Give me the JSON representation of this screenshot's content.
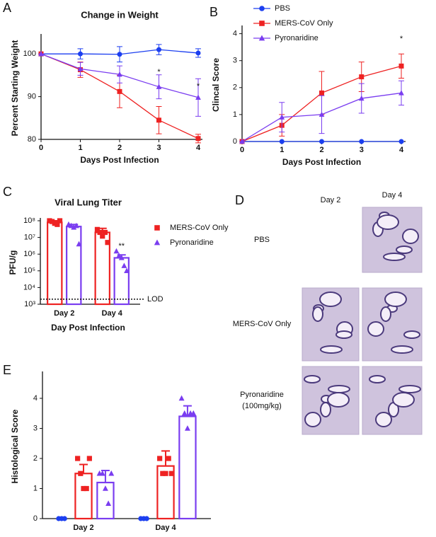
{
  "chart_data": [
    {
      "type": "line",
      "panel": "A",
      "title": "Change in Weight",
      "x_label": "Days Post Infection",
      "y_label": "Percent Starting Weight",
      "x": [
        0,
        1,
        2,
        3,
        4
      ],
      "xlim": [
        0,
        4
      ],
      "xticks": [
        0,
        1,
        2,
        3,
        4
      ],
      "ylim": [
        80,
        104
      ],
      "yticks": [
        80,
        90,
        100
      ],
      "series": [
        {
          "name": "PBS",
          "color": "#1c3ff0",
          "marker": "circle",
          "values": [
            100,
            100,
            99.9,
            101,
            100.2
          ],
          "errors": [
            0,
            1.2,
            1.8,
            1.2,
            1
          ]
        },
        {
          "name": "MERS-CoV Only",
          "color": "#ee2222",
          "marker": "square",
          "values": [
            100,
            96.3,
            91.2,
            84.5,
            80.2
          ],
          "errors": [
            0,
            1.8,
            3.8,
            3.2,
            1
          ]
        },
        {
          "name": "Pyronaridine",
          "color": "#7a3df0",
          "marker": "triangle",
          "values": [
            100,
            96.5,
            95.2,
            92.3,
            89.8
          ],
          "errors": [
            0,
            1.5,
            2,
            2.8,
            4.4
          ]
        }
      ],
      "annotations": [
        {
          "text": "*",
          "x": 3,
          "y": 95.7,
          "color": "#ee2222"
        },
        {
          "text": "*",
          "x": 4,
          "y": 92.4,
          "color": "#ee2222"
        }
      ]
    },
    {
      "type": "line",
      "panel": "B",
      "x_label": "Days Post Infection",
      "y_label": "Clincal Score",
      "x": [
        0,
        1,
        2,
        3,
        4
      ],
      "xlim": [
        0,
        4
      ],
      "xticks": [
        0,
        1,
        2,
        3,
        4
      ],
      "ylim": [
        0,
        4.2
      ],
      "yticks": [
        0,
        1,
        2,
        3,
        4
      ],
      "legend": "upper right",
      "series": [
        {
          "name": "PBS",
          "color": "#1c3ff0",
          "marker": "circle",
          "values": [
            0,
            0,
            0,
            0,
            0
          ],
          "errors": [
            0,
            0,
            0,
            0,
            0
          ]
        },
        {
          "name": "MERS-CoV Only",
          "color": "#ee2222",
          "marker": "square",
          "values": [
            0,
            0.6,
            1.8,
            2.4,
            2.8
          ],
          "errors": [
            0,
            0.4,
            0.8,
            0.55,
            0.45
          ]
        },
        {
          "name": "Pyronaridine",
          "color": "#7a3df0",
          "marker": "triangle",
          "values": [
            0,
            0.9,
            1.0,
            1.6,
            1.8
          ],
          "errors": [
            0,
            0.55,
            0.7,
            0.55,
            0.45
          ]
        }
      ],
      "annotations": [
        {
          "text": "*",
          "x": 4,
          "y": 3.8,
          "color": "#ee2222"
        }
      ]
    },
    {
      "type": "bar",
      "panel": "C",
      "title": "Viral Lung Titer",
      "x_label": "Day Post Infection",
      "y_label": "PFU/g",
      "categories": [
        "Day 2",
        "Day 4"
      ],
      "log_y": true,
      "ylim": [
        1000,
        100000000
      ],
      "yticks": [
        {
          "value": 1000,
          "label": "10³"
        },
        {
          "value": 10000,
          "label": "10⁴"
        },
        {
          "value": 100000,
          "label": "10⁵"
        },
        {
          "value": 1000000,
          "label": "10⁶"
        },
        {
          "value": 10000000,
          "label": "10⁷"
        },
        {
          "value": 100000000,
          "label": "10⁸"
        }
      ],
      "lod": {
        "value": 2000,
        "label": "LOD"
      },
      "legend": "outside right",
      "series": [
        {
          "name": "MERS-CoV Only",
          "color": "#ee2222",
          "marker": "square",
          "values": [
            80000000,
            20000000
          ],
          "errors": [
            20000000,
            15000000
          ],
          "points": [
            [
              100000000,
              90000000,
              70000000,
              60000000,
              100000000
            ],
            [
              30000000,
              20000000,
              12000000,
              20000000,
              5000000
            ]
          ]
        },
        {
          "name": "Pyronaridine",
          "color": "#7a3df0",
          "marker": "triangle",
          "values": [
            45000000,
            600000
          ],
          "errors": [
            15000000,
            300000
          ],
          "points": [
            [
              60000000,
              50000000,
              40000000,
              50000000,
              4000000
            ],
            [
              1500000,
              800000,
              600000,
              200000,
              100000
            ]
          ]
        }
      ],
      "annotations": [
        {
          "text": "**",
          "category": "Day 4",
          "series": "Pyronaridine",
          "y": 3000000,
          "color": "#ee2222"
        }
      ]
    },
    {
      "type": "bar",
      "panel": "E",
      "y_label": "Histological Score",
      "categories": [
        "Day 2",
        "Day 4"
      ],
      "ylim": [
        0,
        4.8
      ],
      "yticks": [
        0,
        1,
        2,
        3,
        4
      ],
      "series": [
        {
          "name": "PBS",
          "color": "#1c3ff0",
          "marker": "circle",
          "values": [
            0,
            0
          ],
          "errors": [
            0,
            0
          ],
          "points": [
            [
              0,
              0,
              0
            ],
            [
              0,
              0,
              0
            ]
          ]
        },
        {
          "name": "MERS-CoV Only",
          "color": "#ee2222",
          "marker": "square",
          "values": [
            1.5,
            1.75
          ],
          "errors": [
            0.3,
            0.5
          ],
          "points": [
            [
              2,
              1.5,
              1,
              1,
              2
            ],
            [
              2,
              1.5,
              1.5,
              2,
              1.5
            ]
          ]
        },
        {
          "name": "Pyronaridine",
          "color": "#7a3df0",
          "marker": "triangle",
          "values": [
            1.2,
            3.4
          ],
          "errors": [
            0.4,
            0.35
          ],
          "points": [
            [
              1.5,
              1.5,
              1,
              0.5,
              1.5
            ],
            [
              4,
              3.5,
              3,
              3.5,
              3.5
            ]
          ]
        }
      ]
    }
  ],
  "panel_d": {
    "letter": "D",
    "columns": [
      "Day 2",
      "Day 4"
    ],
    "rows": [
      [
        "PBS"
      ],
      [
        "MERS-CoV Only"
      ],
      [
        "Pyronaridine",
        "(100mg/kg)"
      ]
    ]
  }
}
